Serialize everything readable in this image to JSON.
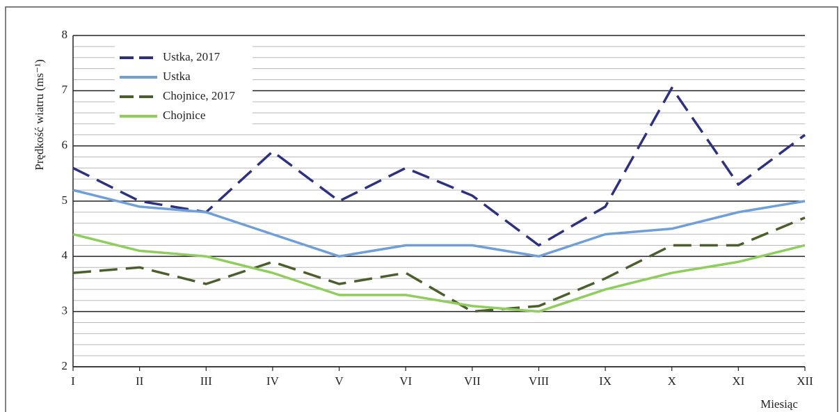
{
  "chart_data": {
    "type": "line",
    "y_label": "Prędkość wiatru (ms⁻¹)",
    "x_label": "Miesiąc",
    "categories": [
      "I",
      "II",
      "III",
      "IV",
      "V",
      "VI",
      "VII",
      "VIII",
      "IX",
      "X",
      "XI",
      "XII"
    ],
    "series": [
      {
        "name": "Ustka, 2017",
        "color": "#2e3080",
        "dashed": true,
        "values": [
          5.6,
          5.0,
          4.8,
          5.9,
          5.0,
          5.6,
          5.1,
          4.2,
          4.9,
          7.05,
          5.3,
          6.2
        ]
      },
      {
        "name": "Ustka",
        "color": "#6f9fd8",
        "dashed": false,
        "values": [
          5.2,
          4.9,
          4.8,
          4.4,
          4.0,
          4.2,
          4.2,
          4.0,
          4.4,
          4.5,
          4.8,
          5.0
        ]
      },
      {
        "name": "Chojnice, 2017",
        "color": "#4b5f2c",
        "dashed": true,
        "values": [
          3.7,
          3.8,
          3.5,
          3.9,
          3.5,
          3.7,
          3.0,
          3.1,
          3.6,
          4.2,
          4.2,
          4.7
        ]
      },
      {
        "name": "Chojnice",
        "color": "#8fcd5c",
        "dashed": false,
        "values": [
          4.4,
          4.1,
          4.0,
          3.7,
          3.3,
          3.3,
          3.1,
          3.0,
          3.4,
          3.7,
          3.9,
          4.2
        ]
      }
    ],
    "ylim": [
      2,
      8
    ],
    "yticks": [
      2,
      3,
      4,
      5,
      6,
      7,
      8
    ],
    "grid": true,
    "minor_grid": true,
    "legend": "upper left"
  }
}
